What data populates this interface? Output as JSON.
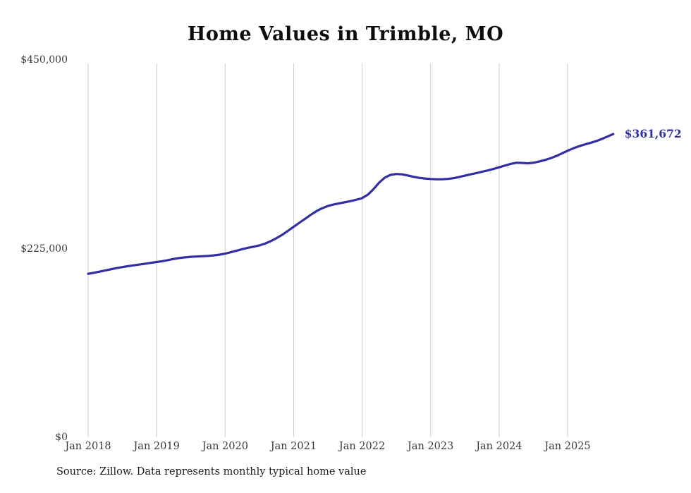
{
  "chart_data": {
    "type": "line",
    "title": "Home Values in Trimble, MO",
    "xlabel": "",
    "ylabel": "",
    "ylim": [
      0,
      450000
    ],
    "grid": "vertical gridlines at each January",
    "legend_position": "none",
    "line_color": "#312fa2",
    "gridline_color": "#cccccc",
    "x_start": "Jan 2018",
    "x_interval": "month",
    "x_tick_labels": [
      "Jan 2018",
      "Jan 2019",
      "Jan 2020",
      "Jan 2021",
      "Jan 2022",
      "Jan 2023",
      "Jan 2024",
      "Jan 2025"
    ],
    "y_ticks": [
      {
        "label": "$450,000",
        "value": 450000
      },
      {
        "label": "$225,000",
        "value": 225000
      },
      {
        "label": "$0",
        "value": 0
      }
    ],
    "end_label": "$361,672",
    "series": [
      {
        "name": "Typical home value",
        "monthly_values": [
          195000,
          196200,
          197500,
          199000,
          200400,
          201800,
          203000,
          204100,
          205100,
          206000,
          207000,
          208000,
          209000,
          210000,
          211300,
          212700,
          213800,
          214600,
          215200,
          215600,
          215900,
          216300,
          216900,
          217800,
          219000,
          220700,
          222500,
          224300,
          226000,
          227300,
          228800,
          231000,
          234000,
          237500,
          241500,
          246200,
          251000,
          255800,
          260500,
          265300,
          269700,
          273200,
          275800,
          277600,
          279000,
          280300,
          281700,
          283300,
          285200,
          289300,
          296000,
          303800,
          309800,
          313000,
          314000,
          313600,
          312200,
          310600,
          309400,
          308600,
          308000,
          307700,
          307700,
          308100,
          309000,
          310400,
          312000,
          313600,
          315100,
          316600,
          318200,
          320000,
          322000,
          324000,
          326000,
          327400,
          327200,
          326700,
          327400,
          328800,
          330600,
          332800,
          335400,
          338500,
          341700,
          344600,
          347100,
          349200,
          351100,
          353200,
          355800,
          358700,
          361672
        ]
      }
    ]
  },
  "source_note": "Source: Zillow. Data represents monthly typical home value"
}
